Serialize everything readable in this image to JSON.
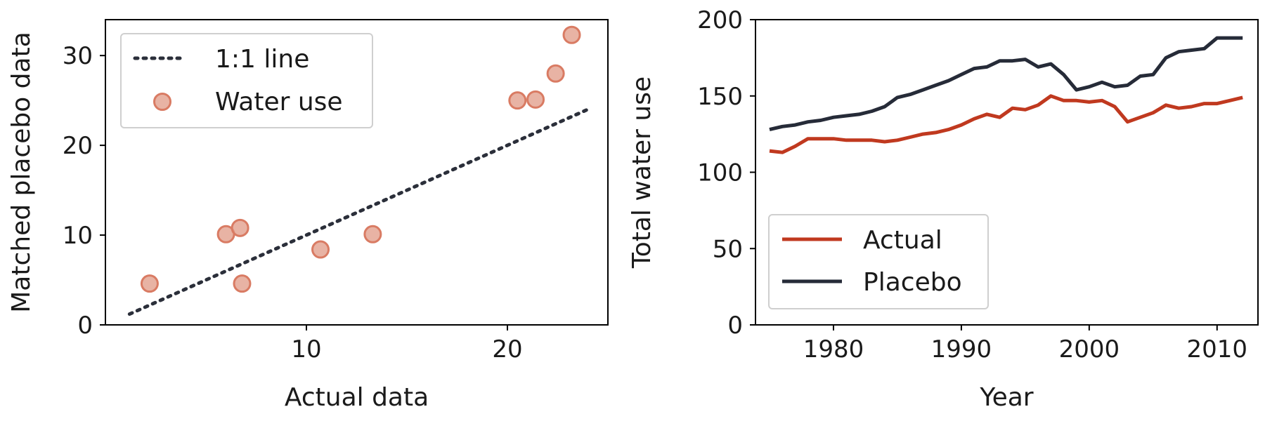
{
  "chart_data": [
    {
      "type": "scatter",
      "xlabel": "Actual data",
      "ylabel": "Matched placebo data",
      "xlim": [
        0,
        25
      ],
      "ylim": [
        0,
        34
      ],
      "xticks": [
        10,
        20
      ],
      "yticks": [
        0,
        10,
        20,
        30
      ],
      "legend_position": "top-left",
      "series": [
        {
          "name": "1:1 line",
          "kind": "line",
          "style": "dotted",
          "color": "#2b2f3a",
          "points": [
            [
              1.2,
              1.2
            ],
            [
              24.0,
              24.0
            ]
          ]
        },
        {
          "name": "Water use",
          "kind": "scatter",
          "color": "#e09a86",
          "points": [
            [
              2.2,
              4.6
            ],
            [
              6.0,
              10.1
            ],
            [
              6.7,
              10.8
            ],
            [
              6.8,
              4.6
            ],
            [
              10.7,
              8.4
            ],
            [
              13.3,
              10.1
            ],
            [
              20.5,
              25.0
            ],
            [
              21.4,
              25.1
            ],
            [
              22.4,
              28.0
            ],
            [
              23.2,
              32.3
            ]
          ]
        }
      ]
    },
    {
      "type": "line",
      "xlabel": "Year",
      "ylabel": "Total water use",
      "xlim": [
        1973.9,
        2013.2
      ],
      "ylim": [
        0,
        200
      ],
      "xticks": [
        1980,
        1990,
        2000,
        2010
      ],
      "yticks": [
        0,
        50,
        100,
        150,
        200
      ],
      "legend_position": "bottom-left",
      "x": [
        1975,
        1976,
        1977,
        1978,
        1979,
        1980,
        1981,
        1982,
        1983,
        1984,
        1985,
        1986,
        1987,
        1988,
        1989,
        1990,
        1991,
        1992,
        1993,
        1994,
        1995,
        1996,
        1997,
        1998,
        1999,
        2000,
        2001,
        2002,
        2003,
        2004,
        2005,
        2006,
        2007,
        2008,
        2009,
        2010,
        2011,
        2012
      ],
      "series": [
        {
          "name": "Actual",
          "color": "#c0391f",
          "values": [
            114,
            113,
            117,
            122,
            122,
            122,
            121,
            121,
            121,
            120,
            121,
            123,
            125,
            126,
            128,
            131,
            135,
            138,
            136,
            142,
            141,
            144,
            150,
            147,
            147,
            146,
            147,
            143,
            133,
            136,
            139,
            144,
            142,
            143,
            145,
            145,
            147,
            149
          ]
        },
        {
          "name": "Placebo",
          "color": "#262b38",
          "values": [
            128,
            130,
            131,
            133,
            134,
            136,
            137,
            138,
            140,
            143,
            149,
            151,
            154,
            157,
            160,
            164,
            168,
            169,
            173,
            173,
            174,
            169,
            171,
            164,
            154,
            156,
            159,
            156,
            157,
            163,
            164,
            175,
            179,
            180,
            181,
            188,
            188,
            188
          ]
        }
      ]
    }
  ]
}
